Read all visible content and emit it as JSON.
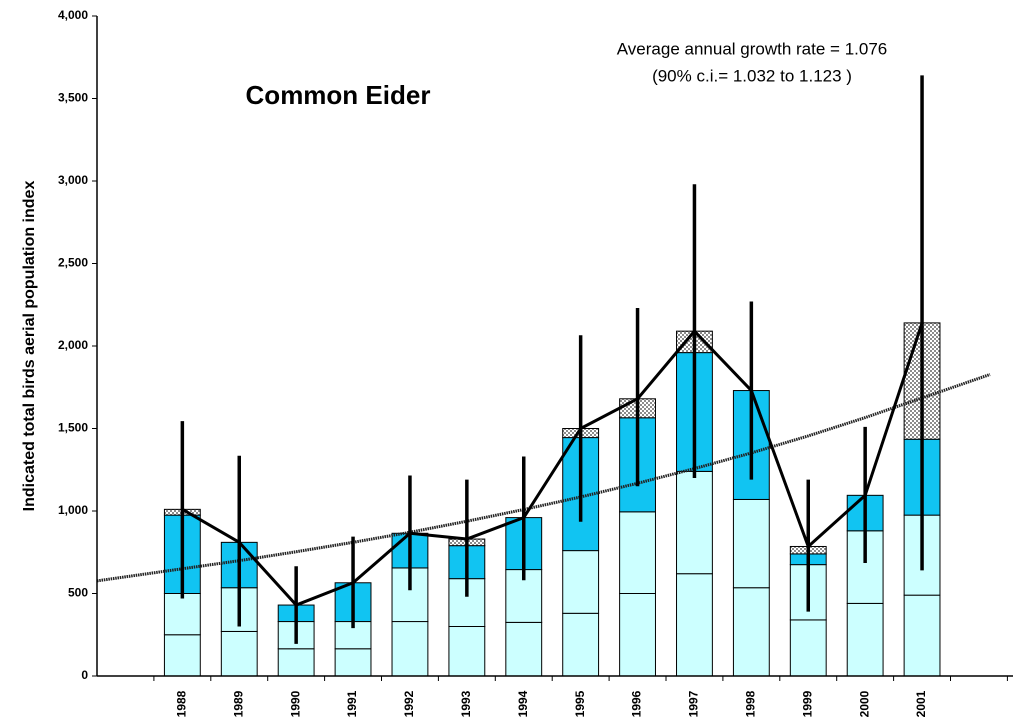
{
  "chart_data": {
    "type": "stacked_bar_errorbar",
    "title": "Common Eider",
    "annotations": [
      "Average annual growth rate = 1.076",
      "(90% c.i.= 1.032 to 1.123 )"
    ],
    "y_label": "Indicated total birds aerial population index",
    "categories": [
      "1988",
      "1989",
      "1990",
      "1991",
      "1992",
      "1993",
      "1994",
      "1995",
      "1996",
      "1997",
      "1998",
      "1999",
      "2000",
      "2001"
    ],
    "series": [
      {
        "color": "#ccffff",
        "values": [
          250,
          270,
          165,
          165,
          330,
          300,
          325,
          380,
          500,
          620,
          535,
          340,
          440,
          490
        ]
      },
      {
        "color": "#ccffff",
        "values": [
          250,
          265,
          165,
          165,
          325,
          290,
          320,
          380,
          495,
          620,
          535,
          335,
          440,
          485
        ]
      },
      {
        "color": "#11c4f2",
        "values": [
          475,
          275,
          100,
          235,
          210,
          200,
          315,
          685,
          570,
          720,
          660,
          65,
          215,
          460
        ]
      },
      {
        "color": "#8c8c8c",
        "pattern": "checker",
        "values": [
          35,
          0,
          0,
          0,
          0,
          40,
          0,
          55,
          115,
          130,
          0,
          45,
          0,
          705
        ]
      }
    ],
    "total": {
      "color": "#000000",
      "values": [
        1010,
        810,
        430,
        565,
        865,
        830,
        960,
        1500,
        1680,
        2090,
        1730,
        785,
        1095,
        2140
      ]
    },
    "ci_low": [
      470,
      300,
      195,
      290,
      520,
      480,
      580,
      935,
      1150,
      1200,
      1190,
      390,
      685,
      640
    ],
    "ci_high": [
      1545,
      1335,
      665,
      845,
      1215,
      1190,
      1330,
      2065,
      2230,
      2980,
      2270,
      1190,
      1510,
      3640
    ],
    "trend": {
      "color": "#222222",
      "values": [
        650,
        699,
        753,
        810,
        871,
        938,
        1009,
        1085,
        1168,
        1257,
        1352,
        1455,
        1566,
        1685
      ]
    },
    "ylim": [
      0,
      4000
    ],
    "yticks": [
      0,
      500,
      {
        "value": 1000,
        "label": "1,000"
      },
      {
        "value": 1500,
        "label": "1,500"
      },
      {
        "value": 2000,
        "label": "2,000"
      },
      {
        "value": 2500,
        "label": "2,500"
      },
      {
        "value": 3000,
        "label": "3,000"
      },
      {
        "value": 3500,
        "label": "3,500"
      },
      {
        "value": 4000,
        "label": "4,000"
      }
    ]
  }
}
